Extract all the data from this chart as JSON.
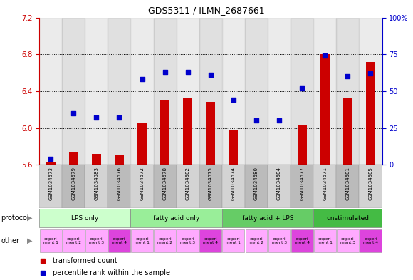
{
  "title": "GDS5311 / ILMN_2687661",
  "samples": [
    "GSM1034573",
    "GSM1034579",
    "GSM1034583",
    "GSM1034576",
    "GSM1034572",
    "GSM1034578",
    "GSM1034582",
    "GSM1034575",
    "GSM1034574",
    "GSM1034580",
    "GSM1034584",
    "GSM1034577",
    "GSM1034571",
    "GSM1034581",
    "GSM1034585"
  ],
  "bar_values": [
    5.63,
    5.73,
    5.72,
    5.7,
    6.05,
    6.3,
    6.32,
    6.28,
    5.97,
    5.55,
    5.55,
    6.03,
    6.8,
    6.32,
    6.72
  ],
  "dot_values": [
    4,
    35,
    32,
    32,
    58,
    63,
    63,
    61,
    44,
    30,
    30,
    52,
    74,
    60,
    62
  ],
  "ylim_left": [
    5.6,
    7.2
  ],
  "ylim_right": [
    0,
    100
  ],
  "yticks_left": [
    5.6,
    6.0,
    6.4,
    6.8,
    7.2
  ],
  "yticks_right": [
    0,
    25,
    50,
    75,
    100
  ],
  "bar_color": "#cc0000",
  "dot_color": "#0000cc",
  "protocols": [
    {
      "label": "LPS only",
      "start": 0,
      "end": 4,
      "color": "#ccffcc"
    },
    {
      "label": "fatty acid only",
      "start": 4,
      "end": 8,
      "color": "#99ee99"
    },
    {
      "label": "fatty acid + LPS",
      "start": 8,
      "end": 12,
      "color": "#66cc66"
    },
    {
      "label": "unstimulated",
      "start": 12,
      "end": 15,
      "color": "#44bb44"
    }
  ],
  "experiment_labels": [
    "experi\nment 1",
    "experi\nment 2",
    "experi\nment 3",
    "experi\nment 4",
    "experi\nment 1",
    "experi\nment 2",
    "experi\nment 3",
    "experi\nment 4",
    "experi\nment 1",
    "experi\nment 2",
    "experi\nment 3",
    "experi\nment 4",
    "experi\nment 1",
    "experi\nment 3",
    "experi\nment 4"
  ],
  "experiment_dark": [
    3,
    7,
    11,
    14
  ],
  "bg_color": "#ffffff",
  "col_bg_even": "#d3d3d3",
  "col_bg_odd": "#bbbbbb",
  "left_axis_color": "#cc0000",
  "right_axis_color": "#0000cc",
  "grid_yticks": [
    6.0,
    6.4,
    6.8
  ],
  "exp_color_light": "#ffaaff",
  "exp_color_dark": "#dd44dd",
  "proto_border": "#888888",
  "title_fontsize": 9,
  "tick_fontsize": 7,
  "label_fontsize": 6
}
